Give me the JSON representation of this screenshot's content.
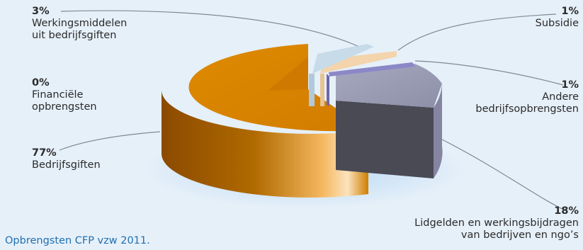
{
  "chart_data": {
    "type": "pie",
    "slices": [
      {
        "pct_label": "77%",
        "value": 77,
        "label_lines": [
          "Bedrijfsgiften"
        ],
        "color": "#d98300",
        "side": "#b86e00"
      },
      {
        "pct_label": "3%",
        "value": 3,
        "label_lines": [
          "Werkingsmiddelen",
          "uit bedrijfsgiften"
        ],
        "color": "#c7dbe9",
        "side": "#a9c2d6"
      },
      {
        "pct_label": "1%",
        "value": 1,
        "label_lines": [
          "Subsidie"
        ],
        "color": "#f3d4ac",
        "side": "#d9b98f"
      },
      {
        "pct_label": "1%",
        "value": 1,
        "label_lines": [
          "Andere",
          "bedrijfsopbrengsten"
        ],
        "color": "#8c88c7",
        "side": "#6f6ba8"
      },
      {
        "pct_label": "18%",
        "value": 18,
        "label_lines": [
          "Lidgelden en werkingsbijdragen",
          "van bedrijven en ngo’s"
        ],
        "color": "#9a9cb4",
        "side": "#4a4a55"
      },
      {
        "pct_label": "0%",
        "value": 0,
        "label_lines": [
          "Financiële",
          "opbrengsten"
        ],
        "color": "#d98300",
        "side": "#b86e00"
      }
    ],
    "caption": "Opbrengsten CFP vzw 2011."
  }
}
